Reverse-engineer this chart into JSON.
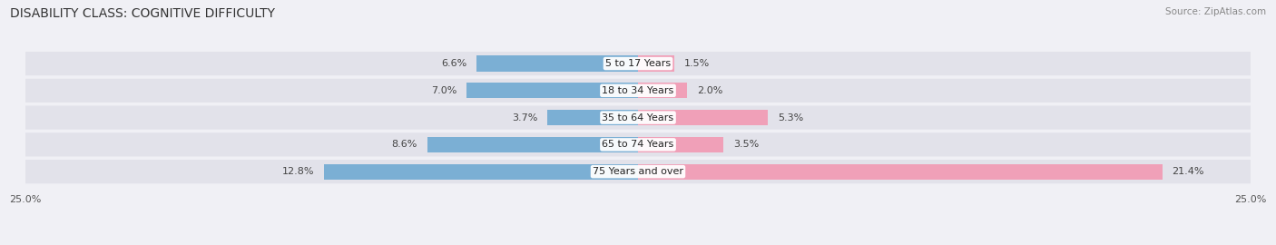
{
  "title": "DISABILITY CLASS: COGNITIVE DIFFICULTY",
  "source": "Source: ZipAtlas.com",
  "categories": [
    "5 to 17 Years",
    "18 to 34 Years",
    "35 to 64 Years",
    "65 to 74 Years",
    "75 Years and over"
  ],
  "male_values": [
    6.6,
    7.0,
    3.7,
    8.6,
    12.8
  ],
  "female_values": [
    1.5,
    2.0,
    5.3,
    3.5,
    21.4
  ],
  "male_color": "#7bafd4",
  "female_color": "#f0a0b8",
  "axis_limit": 25.0,
  "background_color": "#f0f0f5",
  "bar_background": "#e2e2ea",
  "row_gap_color": "#ffffff",
  "title_fontsize": 10,
  "label_fontsize": 8,
  "tick_fontsize": 8,
  "source_fontsize": 7.5
}
